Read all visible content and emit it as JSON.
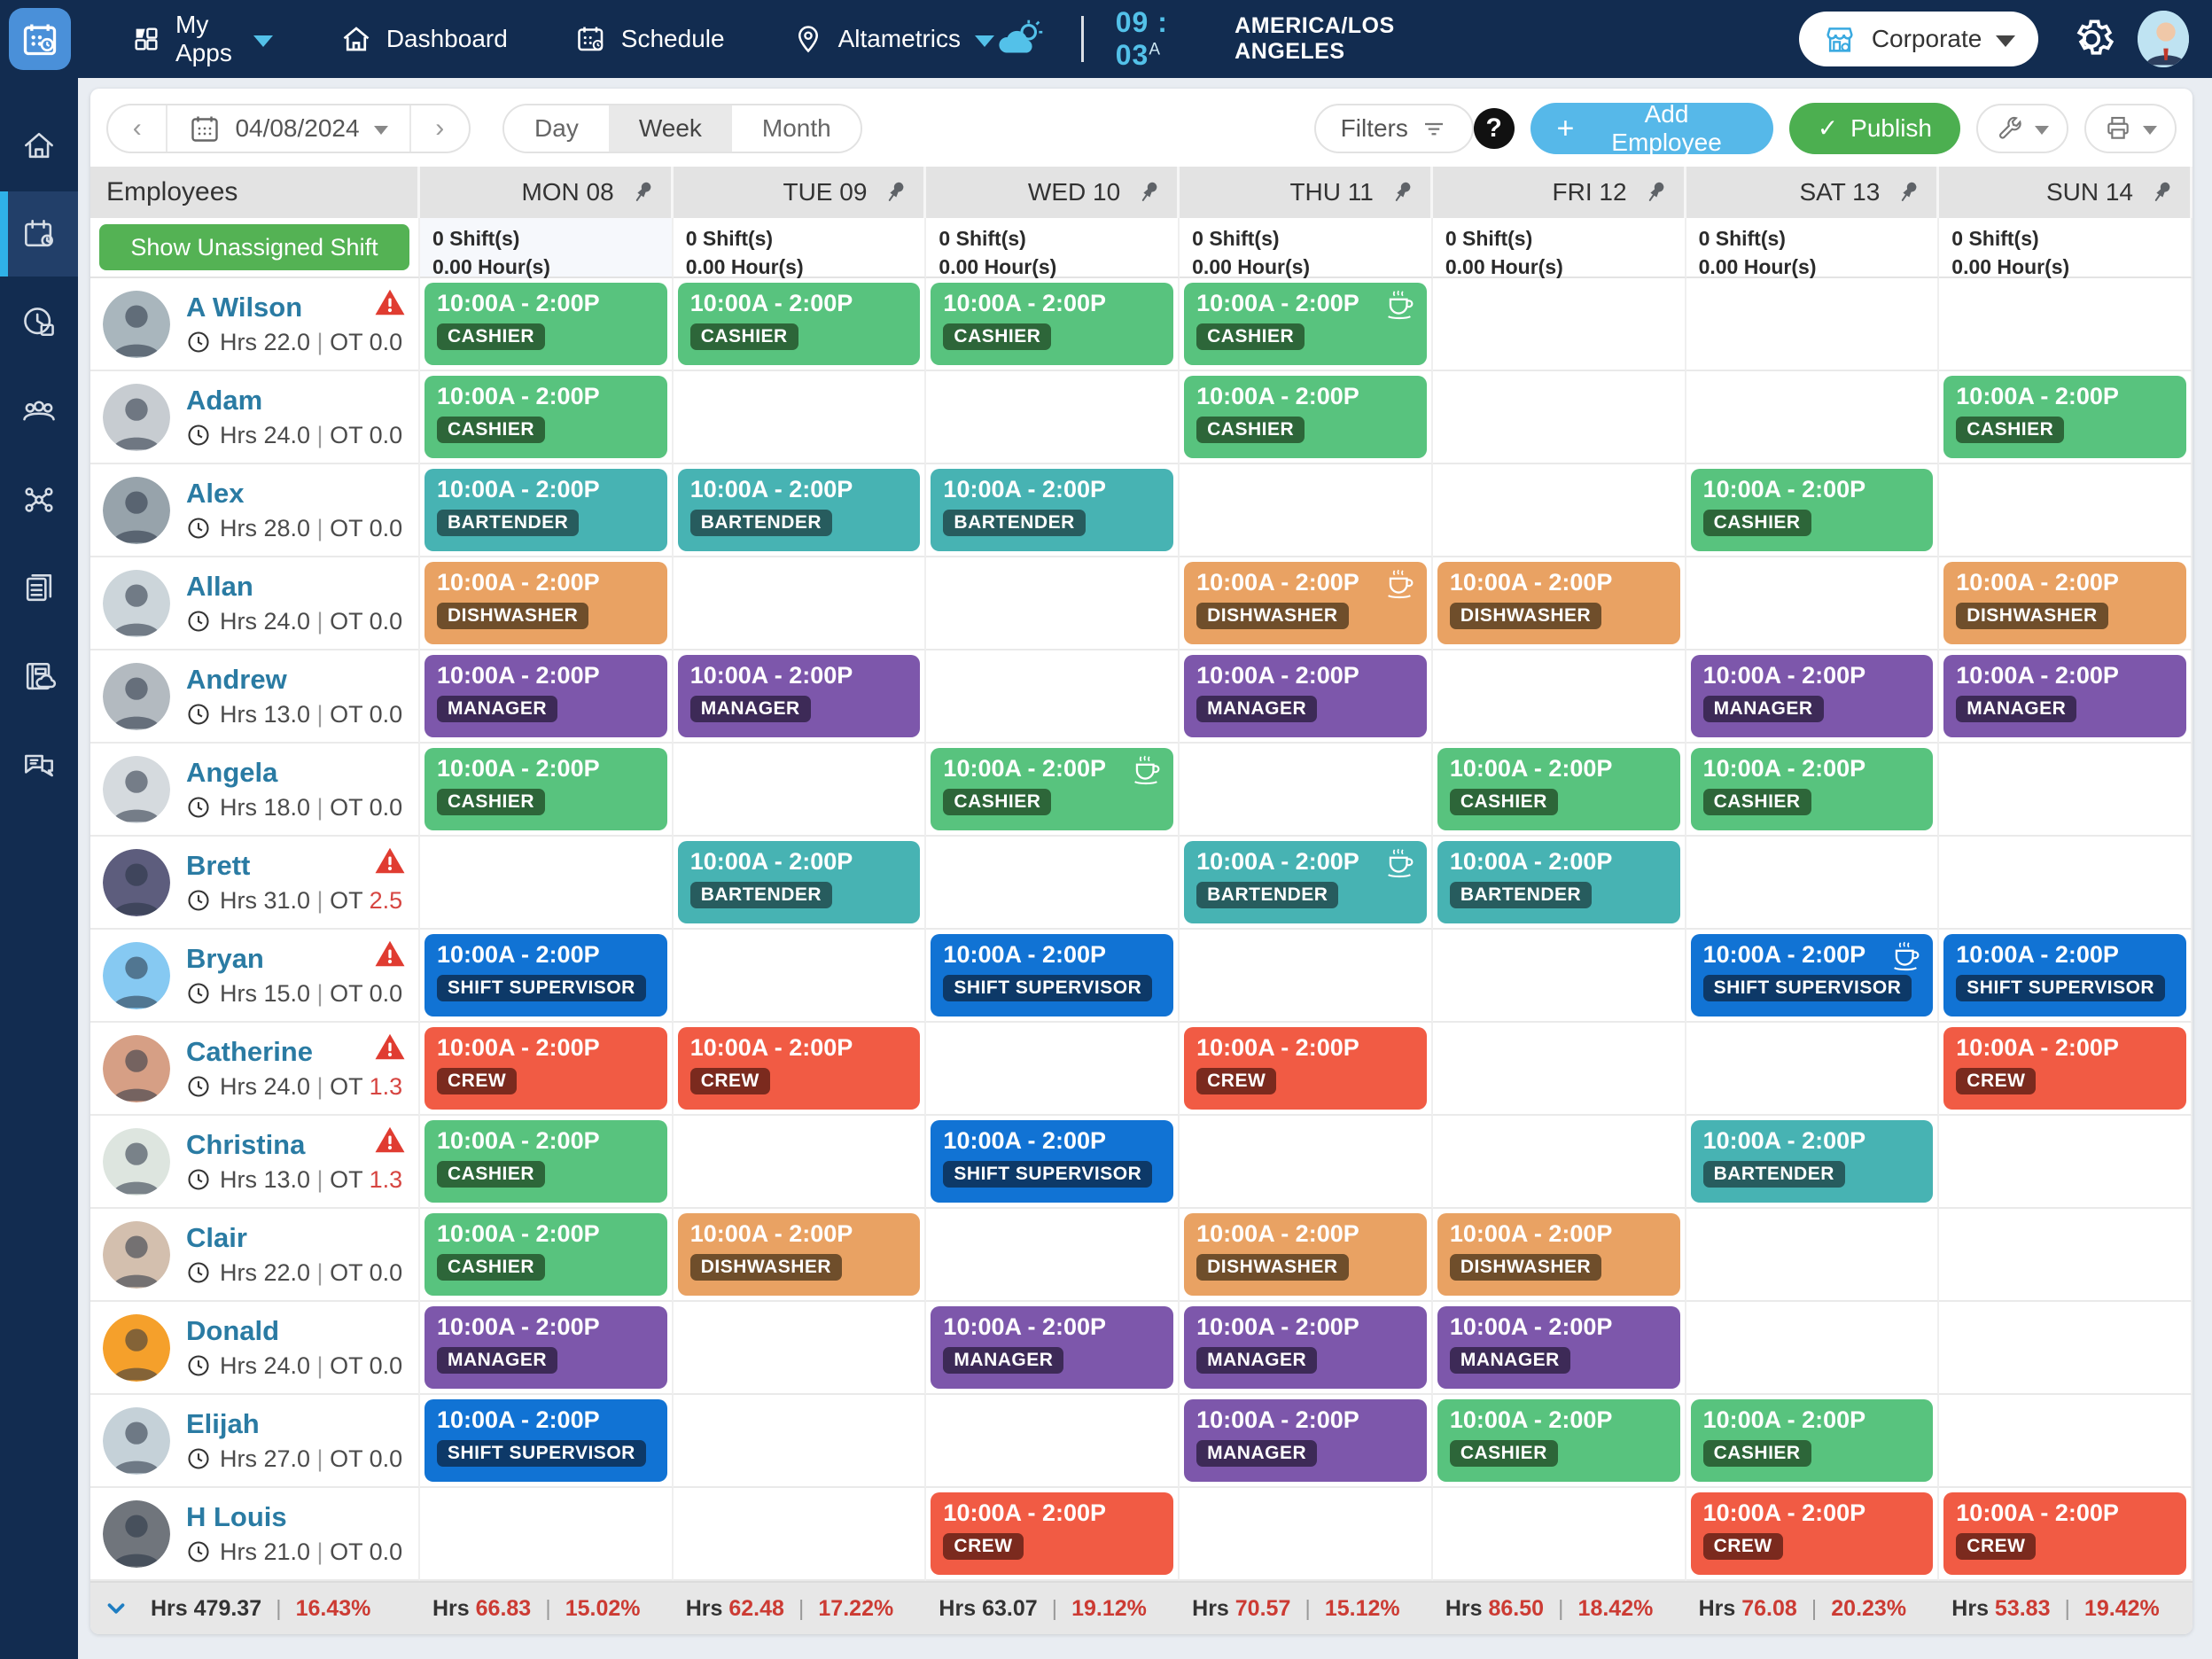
{
  "topbar": {
    "nav": [
      {
        "id": "my-apps",
        "label": "My Apps"
      },
      {
        "id": "dashboard",
        "label": "Dashboard"
      },
      {
        "id": "schedule",
        "label": "Schedule"
      },
      {
        "id": "altametrics",
        "label": "Altametrics"
      }
    ],
    "time": "09 : 03",
    "time_suffix": "A",
    "timezone": "AMERICA/LOS ANGELES",
    "org_button": "Corporate"
  },
  "sidebar": {
    "items": [
      {
        "name": "home",
        "active": false
      },
      {
        "name": "schedule",
        "active": true
      },
      {
        "name": "time-clock",
        "active": false
      },
      {
        "name": "team",
        "active": false
      },
      {
        "name": "org-network",
        "active": false
      },
      {
        "name": "documents",
        "active": false
      },
      {
        "name": "reports-cloud",
        "active": false
      },
      {
        "name": "messages",
        "active": false
      }
    ]
  },
  "toolbar": {
    "date": "04/08/2024",
    "views": [
      "Day",
      "Week",
      "Month"
    ],
    "active_view": "Week",
    "filters_label": "Filters",
    "help_label": "?",
    "add_label": "Add Employee",
    "publish_label": "Publish"
  },
  "schedule": {
    "employees_header": "Employees",
    "days": [
      {
        "label": "MON 08",
        "count_tint": "#f6f8fc"
      },
      {
        "label": "TUE 09",
        "count_tint": "#ffffff"
      },
      {
        "label": "WED 10",
        "count_tint": "#ffffff"
      },
      {
        "label": "THU 11",
        "count_tint": "#ffffff"
      },
      {
        "label": "FRI 12",
        "count_tint": "#ffffff"
      },
      {
        "label": "SAT 13",
        "count_tint": "#ffffff"
      },
      {
        "label": "SUN 14",
        "count_tint": "#ffffff"
      }
    ],
    "unassigned": {
      "button_label": "Show Unassigned Shift",
      "shifts_text": "0 Shift(s)",
      "hours_text": "0.00 Hour(s)"
    },
    "roles": {
      "CASHIER": {
        "bg": "#58c37e",
        "badge": "#2d6639"
      },
      "BARTENDER": {
        "bg": "#47b3b3",
        "badge": "#275c5e"
      },
      "DISHWASHER": {
        "bg": "#e9a263",
        "badge": "#6f4e2b"
      },
      "MANAGER": {
        "bg": "#7d57ab",
        "badge": "#3d2a57"
      },
      "SHIFT SUPERVISOR": {
        "bg": "#1173d4",
        "badge": "#0d3968"
      },
      "CREW": {
        "bg": "#f15b44",
        "badge": "#7b2a1e"
      }
    },
    "shift_time": "10:00A - 2:00P",
    "employees": [
      {
        "name": "A Wilson",
        "hours": "22.0",
        "ot": "0.0",
        "ot_red": false,
        "warning": true,
        "avatar_color": "#a9b6bd",
        "shifts": [
          {
            "d": 0,
            "role": "CASHIER"
          },
          {
            "d": 1,
            "role": "CASHIER"
          },
          {
            "d": 2,
            "role": "CASHIER"
          },
          {
            "d": 3,
            "role": "CASHIER",
            "brk": true
          }
        ]
      },
      {
        "name": "Adam",
        "hours": "24.0",
        "ot": "0.0",
        "ot_red": false,
        "warning": false,
        "avatar_color": "#c7ccd1",
        "shifts": [
          {
            "d": 0,
            "role": "CASHIER"
          },
          {
            "d": 3,
            "role": "CASHIER"
          },
          {
            "d": 6,
            "role": "CASHIER"
          }
        ]
      },
      {
        "name": "Alex",
        "hours": "28.0",
        "ot": "0.0",
        "ot_red": false,
        "warning": false,
        "avatar_color": "#97a3ab",
        "shifts": [
          {
            "d": 0,
            "role": "BARTENDER"
          },
          {
            "d": 1,
            "role": "BARTENDER"
          },
          {
            "d": 2,
            "role": "BARTENDER"
          },
          {
            "d": 5,
            "role": "CASHIER"
          }
        ]
      },
      {
        "name": "Allan",
        "hours": "24.0",
        "ot": "0.0",
        "ot_red": false,
        "warning": false,
        "avatar_color": "#ccd5da",
        "shifts": [
          {
            "d": 0,
            "role": "DISHWASHER"
          },
          {
            "d": 3,
            "role": "DISHWASHER",
            "brk": true
          },
          {
            "d": 4,
            "role": "DISHWASHER"
          },
          {
            "d": 6,
            "role": "DISHWASHER"
          }
        ]
      },
      {
        "name": "Andrew",
        "hours": "13.0",
        "ot": "0.0",
        "ot_red": false,
        "warning": false,
        "avatar_color": "#b3bac0",
        "shifts": [
          {
            "d": 0,
            "role": "MANAGER"
          },
          {
            "d": 1,
            "role": "MANAGER"
          },
          {
            "d": 3,
            "role": "MANAGER"
          },
          {
            "d": 5,
            "role": "MANAGER"
          },
          {
            "d": 6,
            "role": "MANAGER"
          }
        ]
      },
      {
        "name": "Angela",
        "hours": "18.0",
        "ot": "0.0",
        "ot_red": false,
        "warning": false,
        "avatar_color": "#d5dade",
        "shifts": [
          {
            "d": 0,
            "role": "CASHIER"
          },
          {
            "d": 2,
            "role": "CASHIER",
            "brk": true
          },
          {
            "d": 4,
            "role": "CASHIER"
          },
          {
            "d": 5,
            "role": "CASHIER"
          }
        ]
      },
      {
        "name": "Brett",
        "hours": "31.0",
        "ot": "2.5",
        "ot_red": true,
        "warning": true,
        "avatar_color": "#5d5d7d",
        "shifts": [
          {
            "d": 1,
            "role": "BARTENDER"
          },
          {
            "d": 3,
            "role": "BARTENDER",
            "brk": true
          },
          {
            "d": 4,
            "role": "BARTENDER"
          }
        ]
      },
      {
        "name": "Bryan",
        "hours": "15.0",
        "ot": "0.0",
        "ot_red": false,
        "warning": true,
        "avatar_color": "#86c9f2",
        "shifts": [
          {
            "d": 0,
            "role": "SHIFT SUPERVISOR"
          },
          {
            "d": 2,
            "role": "SHIFT SUPERVISOR"
          },
          {
            "d": 5,
            "role": "SHIFT SUPERVISOR",
            "brk": true
          },
          {
            "d": 6,
            "role": "SHIFT SUPERVISOR"
          }
        ]
      },
      {
        "name": "Catherine",
        "hours": "24.0",
        "ot": "1.3",
        "ot_red": true,
        "warning": true,
        "avatar_color": "#d69f85",
        "shifts": [
          {
            "d": 0,
            "role": "CREW"
          },
          {
            "d": 1,
            "role": "CREW"
          },
          {
            "d": 3,
            "role": "CREW"
          },
          {
            "d": 6,
            "role": "CREW"
          }
        ]
      },
      {
        "name": "Christina",
        "hours": "13.0",
        "ot": "1.3",
        "ot_red": true,
        "warning": true,
        "avatar_color": "#dde5df",
        "shifts": [
          {
            "d": 0,
            "role": "CASHIER"
          },
          {
            "d": 2,
            "role": "SHIFT SUPERVISOR"
          },
          {
            "d": 5,
            "role": "BARTENDER"
          }
        ]
      },
      {
        "name": "Clair",
        "hours": "22.0",
        "ot": "0.0",
        "ot_red": false,
        "warning": false,
        "avatar_color": "#d3bfae",
        "shifts": [
          {
            "d": 0,
            "role": "CASHIER"
          },
          {
            "d": 1,
            "role": "DISHWASHER"
          },
          {
            "d": 3,
            "role": "DISHWASHER"
          },
          {
            "d": 4,
            "role": "DISHWASHER"
          }
        ]
      },
      {
        "name": "Donald",
        "hours": "24.0",
        "ot": "0.0",
        "ot_red": false,
        "warning": false,
        "avatar_color": "#f5a02b",
        "shifts": [
          {
            "d": 0,
            "role": "MANAGER"
          },
          {
            "d": 2,
            "role": "MANAGER"
          },
          {
            "d": 3,
            "role": "MANAGER"
          },
          {
            "d": 4,
            "role": "MANAGER"
          }
        ]
      },
      {
        "name": "Elijah",
        "hours": "27.0",
        "ot": "0.0",
        "ot_red": false,
        "warning": false,
        "avatar_color": "#c5d1d8",
        "shifts": [
          {
            "d": 0,
            "role": "SHIFT SUPERVISOR"
          },
          {
            "d": 3,
            "role": "MANAGER"
          },
          {
            "d": 4,
            "role": "CASHIER"
          },
          {
            "d": 5,
            "role": "CASHIER"
          }
        ]
      },
      {
        "name": "H Louis",
        "hours": "21.0",
        "ot": "0.0",
        "ot_red": false,
        "warning": false,
        "avatar_color": "#70757c",
        "shifts": [
          {
            "d": 2,
            "role": "CREW"
          },
          {
            "d": 5,
            "role": "CREW"
          },
          {
            "d": 6,
            "role": "CREW"
          }
        ]
      }
    ],
    "hrs_prefix": "Hrs",
    "ot_prefix": "OT",
    "footer": {
      "total": {
        "label": "Hrs",
        "value": "479.37",
        "value_red": false,
        "pct": "16.43%"
      },
      "days": [
        {
          "label": "Hrs",
          "value": "66.83",
          "value_red": true,
          "pct": "15.02%"
        },
        {
          "label": "Hrs",
          "value": "62.48",
          "value_red": true,
          "pct": "17.22%"
        },
        {
          "label": "Hrs",
          "value": "63.07",
          "value_red": false,
          "pct": "19.12%"
        },
        {
          "label": "Hrs",
          "value": "70.57",
          "value_red": true,
          "pct": "15.12%"
        },
        {
          "label": "Hrs",
          "value": "86.50",
          "value_red": true,
          "pct": "18.42%"
        },
        {
          "label": "Hrs",
          "value": "76.08",
          "value_red": true,
          "pct": "20.23%"
        },
        {
          "label": "Hrs",
          "value": "53.83",
          "value_red": true,
          "pct": "19.42%"
        }
      ]
    }
  }
}
